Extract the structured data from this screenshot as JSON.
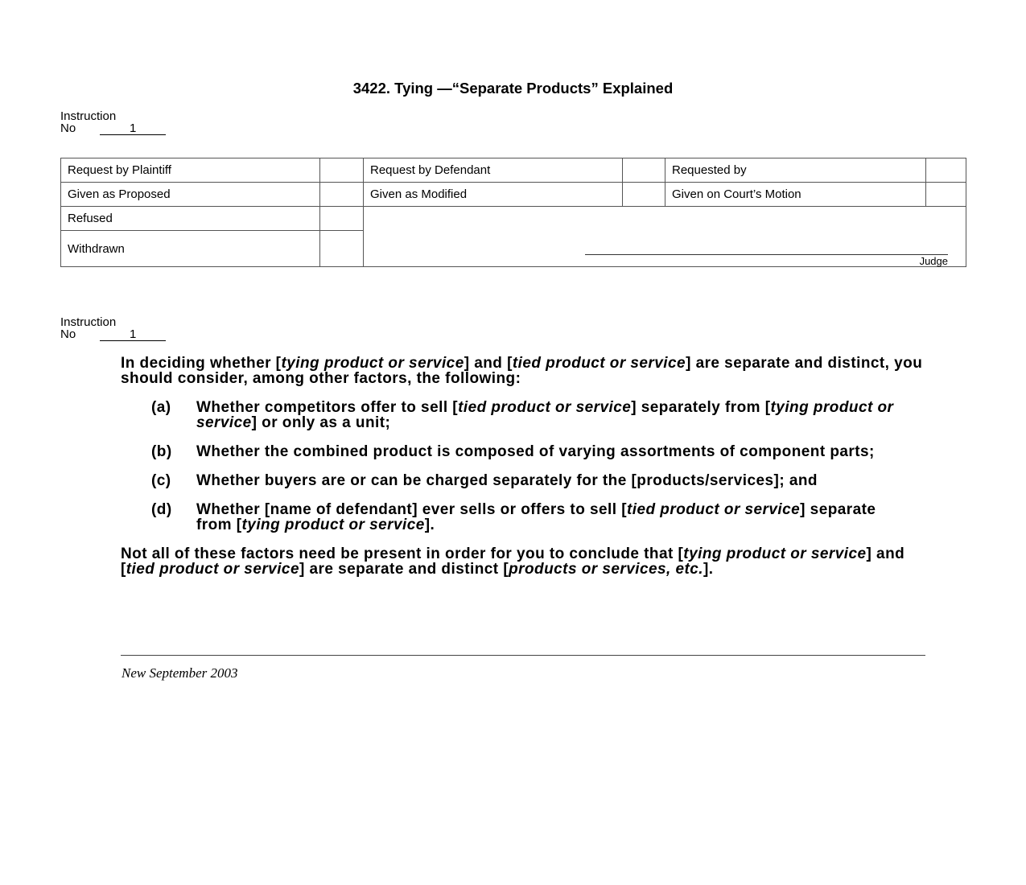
{
  "title": "3422. Tying —“Separate Products” Explained",
  "instruction_header": {
    "label": "Instruction",
    "no_label": "No",
    "number": "1"
  },
  "request_table": {
    "request_by_plaintiff": "Request by Plaintiff",
    "request_by_defendant": "Request by Defendant",
    "requested_by": "Requested by",
    "given_as_proposed": "Given as Proposed",
    "given_as_modified": "Given as Modified",
    "given_on_courts_motion": "Given on Court’s Motion",
    "refused": "Refused",
    "withdrawn": "Withdrawn",
    "judge_label": "Judge"
  },
  "instruction_body_header": {
    "label": "Instruction",
    "no_label": "No",
    "number": "1"
  },
  "body": {
    "intro": [
      {
        "t": "In deciding whether ["
      },
      {
        "t": "tying product or service",
        "i": true
      },
      {
        "t": "] and ["
      },
      {
        "t": "tied product or service",
        "i": true
      },
      {
        "t": "] are separate and distinct, you should consider, among other factors, the following:"
      }
    ],
    "items": [
      {
        "label": "(a)",
        "segments": [
          {
            "t": "Whether competitors offer to sell ["
          },
          {
            "t": "tied product or service",
            "i": true
          },
          {
            "t": "] separately from ["
          },
          {
            "t": "tying product or service",
            "i": true
          },
          {
            "t": "] or only as a unit;"
          }
        ]
      },
      {
        "label": "(b)",
        "segments": [
          {
            "t": "Whether the combined product is composed of varying assortments of component parts;"
          }
        ]
      },
      {
        "label": "(c)",
        "segments": [
          {
            "t": "Whether buyers are or can be charged separately for the [products/services]; and"
          }
        ]
      },
      {
        "label": "(d)",
        "segments": [
          {
            "t": "Whether [name of defendant] ever sells or offers to sell ["
          },
          {
            "t": "tied product or service",
            "i": true
          },
          {
            "t": "] separate from ["
          },
          {
            "t": "tying product or service",
            "i": true
          },
          {
            "t": "]."
          }
        ]
      }
    ],
    "conclusion": [
      {
        "t": "Not all of these factors need be present in order for you to conclude that ["
      },
      {
        "t": "tying product or service",
        "i": true
      },
      {
        "t": "] and ["
      },
      {
        "t": "tied product or service",
        "i": true
      },
      {
        "t": "] are separate and distinct ["
      },
      {
        "t": "products or services, etc.",
        "i": true
      },
      {
        "t": "]."
      }
    ]
  },
  "footer": "New September 2003"
}
